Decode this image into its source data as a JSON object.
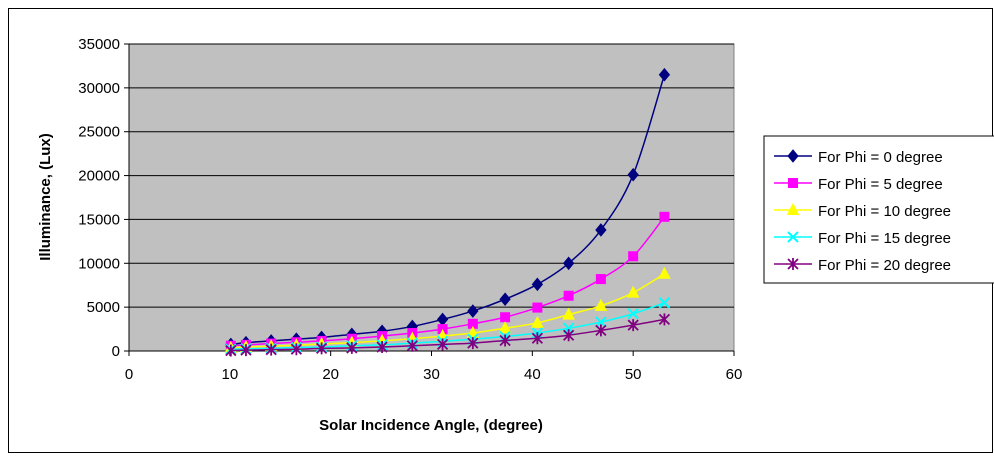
{
  "chart_data": {
    "type": "line",
    "title": "",
    "xlabel": "Solar Incidence Angle, (degree)",
    "ylabel": "Illuminance, (Lux)",
    "xlim": [
      0,
      60
    ],
    "ylim": [
      0,
      35000
    ],
    "xticks": [
      "0",
      "10",
      "20",
      "30",
      "40",
      "50",
      "60"
    ],
    "yticks": [
      "0",
      "5000",
      "10000",
      "15000",
      "20000",
      "25000",
      "30000",
      "35000"
    ],
    "grid": "horizontal",
    "plot_background": "#c0c0c0",
    "legend_position": "right",
    "x": [
      10.1,
      11.6,
      14.1,
      16.6,
      19.1,
      22.1,
      25.1,
      28.1,
      31.1,
      34.1,
      37.3,
      40.5,
      43.6,
      46.8,
      50.0,
      53.1
    ],
    "series": [
      {
        "name": "For Phi = 0 degree",
        "color": "#000080",
        "marker": "diamond",
        "values": [
          750,
          950,
          1150,
          1350,
          1550,
          1900,
          2250,
          2800,
          3600,
          4550,
          5900,
          7600,
          10000,
          13800,
          20100,
          31500
        ]
      },
      {
        "name": "For Phi = 5 degree",
        "color": "#ff00ff",
        "marker": "square",
        "values": [
          600,
          700,
          850,
          1000,
          1150,
          1400,
          1700,
          2050,
          2500,
          3100,
          3850,
          4950,
          6300,
          8200,
          10800,
          15300
        ]
      },
      {
        "name": "For Phi = 10 degree",
        "color": "#ffff00",
        "marker": "triangle",
        "values": [
          350,
          450,
          550,
          650,
          800,
          950,
          1150,
          1400,
          1700,
          2050,
          2600,
          3200,
          4150,
          5150,
          6650,
          8800
        ]
      },
      {
        "name": "For Phi = 15 degree",
        "color": "#00ffff",
        "marker": "x",
        "values": [
          200,
          250,
          300,
          400,
          450,
          600,
          700,
          900,
          1100,
          1350,
          1650,
          2050,
          2600,
          3300,
          4250,
          5500
        ]
      },
      {
        "name": "For Phi = 20 degree",
        "color": "#800080",
        "marker": "asterisk",
        "values": [
          50,
          100,
          150,
          200,
          300,
          350,
          450,
          600,
          750,
          900,
          1200,
          1450,
          1800,
          2350,
          2950,
          3600
        ]
      }
    ]
  }
}
